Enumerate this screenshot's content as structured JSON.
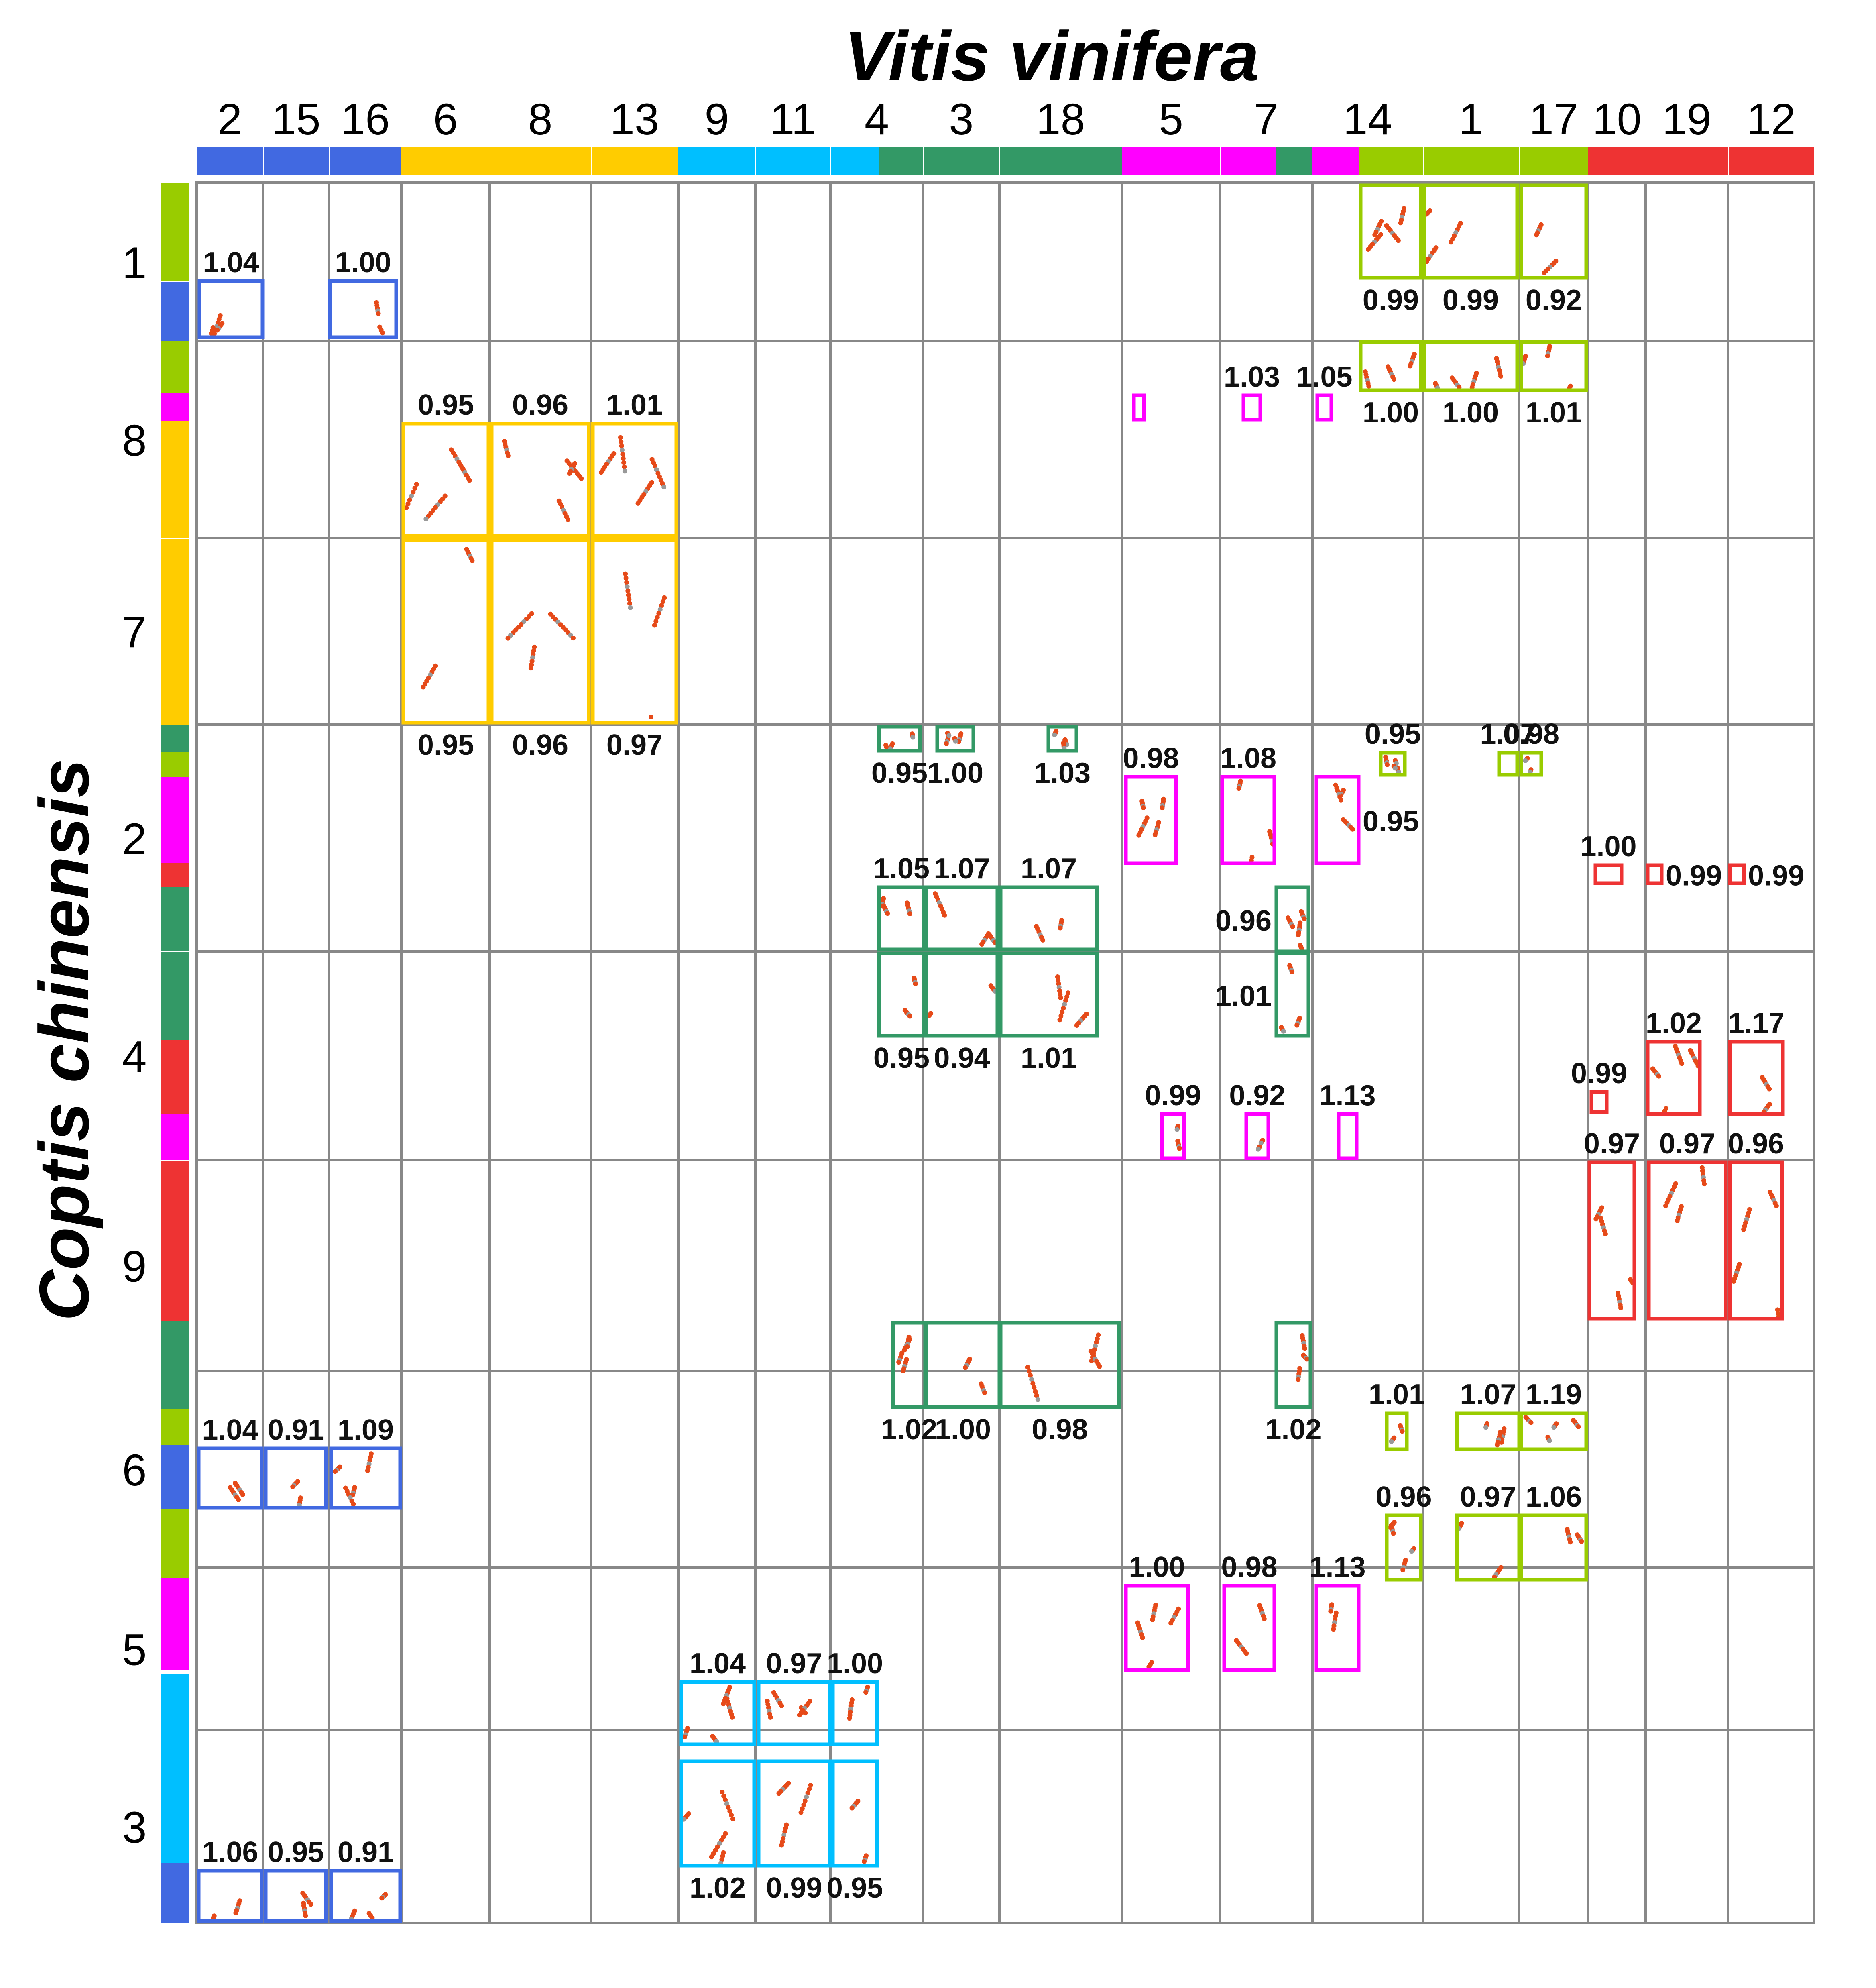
{
  "title_x": "Vitis vinifera",
  "title_y": "Coptis chinensis",
  "colors": {
    "blue": "#4169e1",
    "yellow": "#ffcc00",
    "cyan": "#00bfff",
    "green": "#339966",
    "magenta": "#ff00ff",
    "lime": "#99cc00",
    "red": "#ee3333",
    "grid": "#888888",
    "dots": "#e64a19"
  },
  "x_labels": [
    "2",
    "15",
    "16",
    "6",
    "8",
    "13",
    "9",
    "11",
    "4",
    "3",
    "18",
    "5",
    "7",
    "14",
    "1",
    "17",
    "10",
    "19",
    "12"
  ],
  "y_labels": [
    "1",
    "8",
    "7",
    "2",
    "4",
    "9",
    "6",
    "5",
    "3"
  ],
  "boxes": [
    {
      "col": "2",
      "row": "1",
      "color": "blue",
      "label": "1.04",
      "pos": "top"
    },
    {
      "col": "16",
      "row": "1",
      "color": "blue",
      "label": "1.00",
      "pos": "top"
    },
    {
      "col": "14",
      "row": "1",
      "color": "lime",
      "label": "0.99",
      "pos": "bottom"
    },
    {
      "col": "1",
      "row": "1",
      "color": "lime",
      "label": "0.99",
      "pos": "bottom"
    },
    {
      "col": "17",
      "row": "1",
      "color": "lime",
      "label": "0.92",
      "pos": "bottom"
    },
    {
      "col": "14",
      "row": "8",
      "color": "lime",
      "label": "1.00",
      "pos": "bottom"
    },
    {
      "col": "1",
      "row": "8",
      "color": "lime",
      "label": "1.00",
      "pos": "bottom"
    },
    {
      "col": "17",
      "row": "8",
      "color": "lime",
      "label": "1.01",
      "pos": "bottom"
    },
    {
      "col": "5",
      "row": "8",
      "color": "magenta",
      "label": "",
      "pos": "top"
    },
    {
      "col": "7",
      "row": "8",
      "color": "magenta",
      "label": "1.03",
      "pos": "top"
    },
    {
      "col": "14",
      "row": "8",
      "color": "magenta",
      "label": "1.05",
      "pos": "top"
    },
    {
      "col": "6",
      "row": "8",
      "color": "yellow",
      "label": "0.95",
      "pos": "top"
    },
    {
      "col": "8",
      "row": "8",
      "color": "yellow",
      "label": "0.96",
      "pos": "top"
    },
    {
      "col": "13",
      "row": "8",
      "color": "yellow",
      "label": "1.01",
      "pos": "top"
    },
    {
      "col": "6",
      "row": "7",
      "color": "yellow",
      "label": "0.95",
      "pos": "bottom"
    },
    {
      "col": "8",
      "row": "7",
      "color": "yellow",
      "label": "0.96",
      "pos": "bottom"
    },
    {
      "col": "13",
      "row": "7",
      "color": "yellow",
      "label": "0.97",
      "pos": "bottom"
    },
    {
      "col": "4",
      "row": "2",
      "color": "green",
      "label": "0.95",
      "pos": "bottom"
    },
    {
      "col": "3",
      "row": "2",
      "color": "green",
      "label": "1.00",
      "pos": "bottom"
    },
    {
      "col": "18",
      "row": "2",
      "color": "green",
      "label": "1.03",
      "pos": "bottom"
    },
    {
      "col": "5",
      "row": "2",
      "color": "magenta",
      "label": "0.98",
      "pos": "top"
    },
    {
      "col": "7",
      "row": "2",
      "color": "magenta",
      "label": "1.08",
      "pos": "top"
    },
    {
      "col": "14",
      "row": "2",
      "color": "magenta",
      "label": "0.95",
      "pos": "right"
    },
    {
      "col": "14",
      "row": "2",
      "color": "lime",
      "label": "0.95",
      "pos": "top"
    },
    {
      "col": "1",
      "row": "2",
      "color": "lime",
      "label": "1.07",
      "pos": "top"
    },
    {
      "col": "17",
      "row": "2",
      "color": "lime",
      "label": "0.98",
      "pos": "top"
    },
    {
      "col": "4",
      "row": "2",
      "color": "green",
      "label": "1.05",
      "pos": "top"
    },
    {
      "col": "3",
      "row": "2",
      "color": "green",
      "label": "1.07",
      "pos": "top"
    },
    {
      "col": "18",
      "row": "2",
      "color": "green",
      "label": "1.07",
      "pos": "top"
    },
    {
      "col": "7",
      "row": "2",
      "color": "green",
      "label": "0.96",
      "pos": "left"
    },
    {
      "col": "10",
      "row": "2",
      "color": "red",
      "label": "1.00",
      "pos": "top"
    },
    {
      "col": "19",
      "row": "2",
      "color": "red",
      "label": "0.99",
      "pos": "right"
    },
    {
      "col": "12",
      "row": "2",
      "color": "red",
      "label": "0.99",
      "pos": "right"
    },
    {
      "col": "4",
      "row": "4",
      "color": "green",
      "label": "0.95",
      "pos": "bottom"
    },
    {
      "col": "3",
      "row": "4",
      "color": "green",
      "label": "0.94",
      "pos": "bottom"
    },
    {
      "col": "18",
      "row": "4",
      "color": "green",
      "label": "1.01",
      "pos": "bottom"
    },
    {
      "col": "7",
      "row": "4",
      "color": "green",
      "label": "1.01",
      "pos": "left"
    },
    {
      "col": "19",
      "row": "4",
      "color": "red",
      "label": "1.02",
      "pos": "top"
    },
    {
      "col": "12",
      "row": "4",
      "color": "red",
      "label": "1.17",
      "pos": "top"
    },
    {
      "col": "10",
      "row": "4",
      "color": "red",
      "label": "0.99",
      "pos": "top"
    },
    {
      "col": "5",
      "row": "4",
      "color": "magenta",
      "label": "0.99",
      "pos": "top"
    },
    {
      "col": "7",
      "row": "4",
      "color": "magenta",
      "label": "0.92",
      "pos": "top"
    },
    {
      "col": "14",
      "row": "4",
      "color": "magenta",
      "label": "1.13",
      "pos": "top"
    },
    {
      "col": "10",
      "row": "9",
      "color": "red",
      "label": "0.97",
      "pos": "top"
    },
    {
      "col": "19",
      "row": "9",
      "color": "red",
      "label": "0.97",
      "pos": "top"
    },
    {
      "col": "12",
      "row": "9",
      "color": "red",
      "label": "0.96",
      "pos": "top"
    },
    {
      "col": "4",
      "row": "6",
      "color": "green",
      "label": "1.02",
      "pos": "bottom"
    },
    {
      "col": "3",
      "row": "6",
      "color": "green",
      "label": "1.00",
      "pos": "bottom"
    },
    {
      "col": "18",
      "row": "6",
      "color": "green",
      "label": "0.98",
      "pos": "bottom"
    },
    {
      "col": "7",
      "row": "6",
      "color": "green",
      "label": "1.02",
      "pos": "bottom"
    },
    {
      "col": "14",
      "row": "6",
      "color": "lime",
      "label": "1.01",
      "pos": "top"
    },
    {
      "col": "1",
      "row": "6",
      "color": "lime",
      "label": "1.07",
      "pos": "top"
    },
    {
      "col": "17",
      "row": "6",
      "color": "lime",
      "label": "1.19",
      "pos": "top"
    },
    {
      "col": "2",
      "row": "6",
      "color": "blue",
      "label": "1.04",
      "pos": "top"
    },
    {
      "col": "15",
      "row": "6",
      "color": "blue",
      "label": "0.91",
      "pos": "top"
    },
    {
      "col": "16",
      "row": "6",
      "color": "blue",
      "label": "1.09",
      "pos": "top"
    },
    {
      "col": "14",
      "row": "5",
      "color": "lime",
      "label": "0.96",
      "pos": "top"
    },
    {
      "col": "1",
      "row": "5",
      "color": "lime",
      "label": "0.97",
      "pos": "top"
    },
    {
      "col": "17",
      "row": "5",
      "color": "lime",
      "label": "1.06",
      "pos": "top"
    },
    {
      "col": "5",
      "row": "5",
      "color": "magenta",
      "label": "1.00",
      "pos": "top"
    },
    {
      "col": "7",
      "row": "5",
      "color": "magenta",
      "label": "0.98",
      "pos": "top"
    },
    {
      "col": "14",
      "row": "5",
      "color": "magenta",
      "label": "1.13",
      "pos": "top"
    },
    {
      "col": "9",
      "row": "3",
      "color": "cyan",
      "label": "1.04",
      "pos": "top"
    },
    {
      "col": "11",
      "row": "3",
      "color": "cyan",
      "label": "0.97",
      "pos": "top"
    },
    {
      "col": "4",
      "row": "3",
      "color": "cyan",
      "label": "1.00",
      "pos": "top"
    },
    {
      "col": "9",
      "row": "3",
      "color": "cyan",
      "label": "1.02",
      "pos": "bottom"
    },
    {
      "col": "11",
      "row": "3",
      "color": "cyan",
      "label": "0.99",
      "pos": "bottom"
    },
    {
      "col": "4",
      "row": "3",
      "color": "cyan",
      "label": "0.95",
      "pos": "bottom"
    },
    {
      "col": "2",
      "row": "3",
      "color": "blue",
      "label": "1.06",
      "pos": "top"
    },
    {
      "col": "15",
      "row": "3",
      "color": "blue",
      "label": "0.95",
      "pos": "top"
    },
    {
      "col": "16",
      "row": "3",
      "color": "blue",
      "label": "0.91",
      "pos": "top"
    }
  ]
}
